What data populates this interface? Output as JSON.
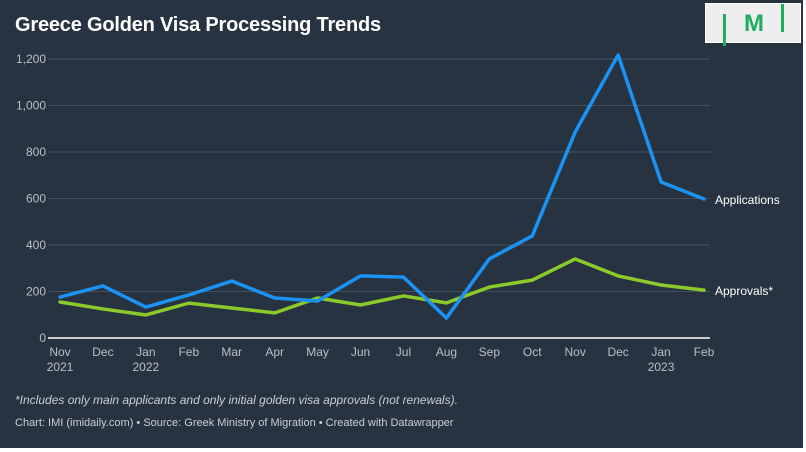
{
  "title": "Greece Golden Visa Processing Trends",
  "logo_text": "IMI",
  "note": "*Includes only main applicants and only initial golden visa approvals (not renewals).",
  "credit": "Chart: IMI (imidaily.com) • Source: Greek Ministry of Migration • Created with Datawrapper",
  "colors": {
    "background": "#283341",
    "applications": "#1b93f5",
    "approvals": "#8cc92b",
    "logo_green": "#1fae5e"
  },
  "chart_data": {
    "type": "line",
    "categories": [
      "Nov 2021",
      "Dec",
      "Jan 2022",
      "Feb",
      "Mar",
      "Apr",
      "May",
      "Jun",
      "Jul",
      "Aug",
      "Sep",
      "Oct",
      "Nov",
      "Dec",
      "Jan 2023",
      "Feb"
    ],
    "x_tick_labels": [
      [
        "Nov",
        "2021"
      ],
      [
        "Dec",
        ""
      ],
      [
        "Jan",
        "2022"
      ],
      [
        "Feb",
        ""
      ],
      [
        "Mar",
        ""
      ],
      [
        "Apr",
        ""
      ],
      [
        "May",
        ""
      ],
      [
        "Jun",
        ""
      ],
      [
        "Jul",
        ""
      ],
      [
        "Aug",
        ""
      ],
      [
        "Sep",
        ""
      ],
      [
        "Oct",
        ""
      ],
      [
        "Nov",
        ""
      ],
      [
        "Dec",
        ""
      ],
      [
        "Jan",
        "2023"
      ],
      [
        "Feb",
        ""
      ]
    ],
    "y_ticks": [
      "0",
      "200",
      "400",
      "600",
      "800",
      "1,000",
      "1,200"
    ],
    "ylim": [
      0,
      1200
    ],
    "grid": true,
    "legend": "inline-right",
    "series": [
      {
        "name": "Applications",
        "color": "#1b93f5",
        "values": [
          176,
          224,
          133,
          185,
          245,
          172,
          159,
          267,
          262,
          86,
          340,
          439,
          886,
          1217,
          671,
          598
        ]
      },
      {
        "name": "Approvals*",
        "color": "#8cc92b",
        "values": [
          155,
          125,
          99,
          150,
          129,
          108,
          172,
          142,
          181,
          151,
          219,
          249,
          340,
          267,
          228,
          206
        ]
      }
    ]
  }
}
